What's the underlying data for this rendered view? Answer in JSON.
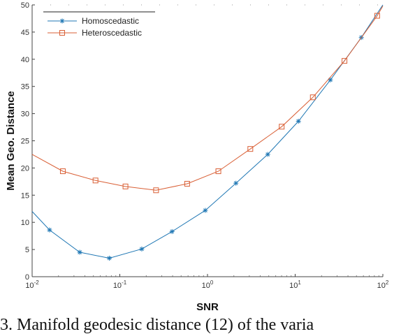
{
  "caption": "3.  Manifold geodesic distance (12) of the varia",
  "chart_data": {
    "type": "line",
    "title": "",
    "xlabel": "SNR",
    "ylabel": "Mean Geo. Distance",
    "xscale": "log",
    "xlim": [
      0.01,
      100
    ],
    "ylim": [
      0,
      50
    ],
    "xticks": [
      {
        "value": 0.01,
        "base": "10",
        "exp": "-2"
      },
      {
        "value": 0.1,
        "base": "10",
        "exp": "-1"
      },
      {
        "value": 1,
        "base": "10",
        "exp": "0"
      },
      {
        "value": 10,
        "base": "10",
        "exp": "1"
      },
      {
        "value": 100,
        "base": "10",
        "exp": "2"
      }
    ],
    "yticks": [
      0,
      5,
      10,
      15,
      20,
      25,
      30,
      35,
      40,
      45,
      50
    ],
    "grid": false,
    "legend_position": "top-left",
    "series": [
      {
        "name": "Homoscedastic",
        "color": "#1f77b4",
        "marker": "asterisk",
        "x": [
          0.01,
          0.0158,
          0.0349,
          0.0759,
          0.178,
          0.394,
          0.945,
          2.11,
          4.87,
          10.9,
          25.2,
          56.8,
          100
        ],
        "y": [
          12.0,
          8.6,
          4.5,
          3.4,
          5.1,
          8.3,
          12.2,
          17.2,
          22.5,
          28.6,
          36.2,
          44.0,
          50.0
        ],
        "marker_x": [
          0.0158,
          0.0349,
          0.0759,
          0.178,
          0.394,
          0.945,
          2.11,
          4.87,
          10.9,
          25.2,
          56.8
        ],
        "marker_y": [
          8.6,
          4.5,
          3.4,
          5.1,
          8.3,
          12.2,
          17.2,
          22.5,
          28.6,
          36.2,
          44.0
        ]
      },
      {
        "name": "Heteroscedastic",
        "color": "#d95f35",
        "marker": "square",
        "x": [
          0.01,
          0.0224,
          0.0528,
          0.116,
          0.259,
          0.586,
          1.33,
          3.08,
          7.02,
          15.9,
          36.5,
          86.2,
          100
        ],
        "y": [
          22.5,
          19.4,
          17.7,
          16.6,
          15.9,
          17.1,
          19.4,
          23.5,
          27.6,
          33.0,
          39.7,
          48.0,
          49.8
        ],
        "marker_x": [
          0.0224,
          0.0528,
          0.116,
          0.259,
          0.586,
          1.33,
          3.08,
          7.02,
          15.9,
          36.5,
          86.2
        ],
        "marker_y": [
          19.4,
          17.7,
          16.6,
          15.9,
          17.1,
          19.4,
          23.5,
          27.6,
          33.0,
          39.7,
          48.0
        ]
      }
    ]
  }
}
